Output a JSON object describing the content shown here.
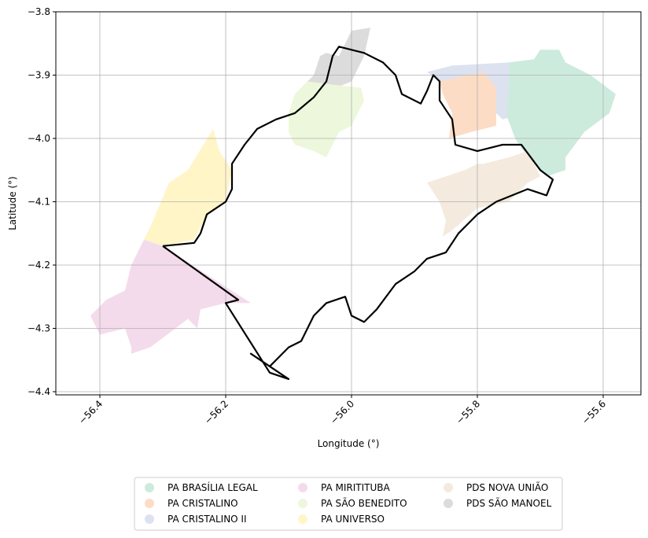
{
  "chart_data": {
    "type": "map",
    "xlabel": "Longitude (°)",
    "ylabel": "Latitude (°)",
    "xlim": [
      -56.47,
      -55.54
    ],
    "ylim": [
      -4.405,
      -3.8
    ],
    "grid": true,
    "legend_placement": "bottom-center",
    "x_ticks": [
      {
        "value": -56.4,
        "label": "−56.4"
      },
      {
        "value": -56.2,
        "label": "−56.2"
      },
      {
        "value": -56.0,
        "label": "−56.0"
      },
      {
        "value": -55.8,
        "label": "−55.8"
      },
      {
        "value": -55.6,
        "label": "−55.6"
      }
    ],
    "y_ticks": [
      {
        "value": -3.8,
        "label": "−3.8"
      },
      {
        "value": -3.9,
        "label": "−3.9"
      },
      {
        "value": -4.0,
        "label": "−4.0"
      },
      {
        "value": -4.1,
        "label": "−4.1"
      },
      {
        "value": -4.2,
        "label": "−4.2"
      },
      {
        "value": -4.3,
        "label": "−4.3"
      },
      {
        "value": -4.4,
        "label": "−4.4"
      }
    ],
    "legend": [
      {
        "label": "PA BRASÍLIA LEGAL",
        "color": "#cdebdd"
      },
      {
        "label": "PA CRISTALINO",
        "color": "#fddcc6"
      },
      {
        "label": "PA CRISTALINO II",
        "color": "#dde2f0"
      },
      {
        "label": "PA MIRITITUBA",
        "color": "#f4dbec"
      },
      {
        "label": "PA SÃO BENEDITO",
        "color": "#edf7dc"
      },
      {
        "label": "PA UNIVERSO",
        "color": "#fff5c7"
      },
      {
        "label": "PDS NOVA UNIÃO",
        "color": "#f4eadd"
      },
      {
        "label": "PDS SÃO MANOEL",
        "color": "#dcdcdc"
      }
    ],
    "regions": [
      {
        "name": "PDS SÃO MANOEL",
        "color": "#dcdcdc",
        "coords": [
          [
            -55.97,
            -3.825
          ],
          [
            -55.98,
            -3.87
          ],
          [
            -56.0,
            -3.91
          ],
          [
            -56.05,
            -3.93
          ],
          [
            -56.08,
            -3.92
          ],
          [
            -56.06,
            -3.9
          ],
          [
            -56.05,
            -3.87
          ],
          [
            -56.04,
            -3.865
          ],
          [
            -56.02,
            -3.87
          ],
          [
            -56.0,
            -3.83
          ]
        ]
      },
      {
        "name": "PA SÃO BENEDITO",
        "color": "#edf7dc",
        "coords": [
          [
            -56.1,
            -3.96
          ],
          [
            -56.09,
            -3.93
          ],
          [
            -56.07,
            -3.91
          ],
          [
            -56.03,
            -3.915
          ],
          [
            -55.985,
            -3.92
          ],
          [
            -55.98,
            -3.94
          ],
          [
            -56.0,
            -3.98
          ],
          [
            -56.02,
            -3.99
          ],
          [
            -56.04,
            -4.03
          ],
          [
            -56.06,
            -4.02
          ],
          [
            -56.09,
            -4.01
          ],
          [
            -56.1,
            -3.99
          ]
        ]
      },
      {
        "name": "PA UNIVERSO",
        "color": "#fff5c7",
        "coords": [
          [
            -56.22,
            -3.985
          ],
          [
            -56.26,
            -4.05
          ],
          [
            -56.29,
            -4.07
          ],
          [
            -56.32,
            -4.14
          ],
          [
            -56.33,
            -4.16
          ],
          [
            -56.3,
            -4.17
          ],
          [
            -56.25,
            -4.16
          ],
          [
            -56.23,
            -4.12
          ],
          [
            -56.2,
            -4.1
          ],
          [
            -56.19,
            -4.05
          ],
          [
            -56.21,
            -4.02
          ]
        ]
      },
      {
        "name": "PA MIRITITUBA",
        "color": "#f4dbec",
        "coords": [
          [
            -56.33,
            -4.16
          ],
          [
            -56.35,
            -4.2
          ],
          [
            -56.36,
            -4.24
          ],
          [
            -56.39,
            -4.255
          ],
          [
            -56.415,
            -4.28
          ],
          [
            -56.4,
            -4.31
          ],
          [
            -56.36,
            -4.3
          ],
          [
            -56.35,
            -4.33
          ],
          [
            -56.35,
            -4.34
          ],
          [
            -56.32,
            -4.33
          ],
          [
            -56.28,
            -4.3
          ],
          [
            -56.26,
            -4.285
          ],
          [
            -56.245,
            -4.3
          ],
          [
            -56.24,
            -4.27
          ],
          [
            -56.2,
            -4.26
          ],
          [
            -56.16,
            -4.26
          ],
          [
            -56.3,
            -4.17
          ]
        ]
      },
      {
        "name": "PA CRISTALINO II",
        "color": "#dde2f0",
        "coords": [
          [
            -55.88,
            -3.895
          ],
          [
            -55.84,
            -3.885
          ],
          [
            -55.75,
            -3.88
          ],
          [
            -55.73,
            -3.89
          ],
          [
            -55.72,
            -3.96
          ],
          [
            -55.76,
            -3.97
          ],
          [
            -55.79,
            -3.94
          ],
          [
            -55.8,
            -3.905
          ],
          [
            -55.86,
            -3.91
          ]
        ]
      },
      {
        "name": "PA CRISTALINO",
        "color": "#fddcc6",
        "coords": [
          [
            -55.86,
            -3.91
          ],
          [
            -55.79,
            -3.895
          ],
          [
            -55.77,
            -3.92
          ],
          [
            -55.77,
            -3.98
          ],
          [
            -55.81,
            -3.99
          ],
          [
            -55.845,
            -4.0
          ],
          [
            -55.84,
            -3.96
          ],
          [
            -55.855,
            -3.93
          ]
        ]
      },
      {
        "name": "PA BRASÍLIA LEGAL",
        "color": "#cdebdd",
        "coords": [
          [
            -55.75,
            -3.88
          ],
          [
            -55.71,
            -3.875
          ],
          [
            -55.7,
            -3.86
          ],
          [
            -55.67,
            -3.86
          ],
          [
            -55.66,
            -3.88
          ],
          [
            -55.62,
            -3.9
          ],
          [
            -55.58,
            -3.93
          ],
          [
            -55.59,
            -3.96
          ],
          [
            -55.63,
            -3.99
          ],
          [
            -55.66,
            -4.03
          ],
          [
            -55.66,
            -4.05
          ],
          [
            -55.69,
            -4.06
          ],
          [
            -55.72,
            -4.03
          ],
          [
            -55.74,
            -4.0
          ],
          [
            -55.755,
            -3.96
          ],
          [
            -55.75,
            -3.92
          ]
        ]
      },
      {
        "name": "PDS NOVA UNIÃO",
        "color": "#f4eadd",
        "coords": [
          [
            -55.88,
            -4.07
          ],
          [
            -55.86,
            -4.1
          ],
          [
            -55.85,
            -4.13
          ],
          [
            -55.855,
            -4.155
          ],
          [
            -55.84,
            -4.145
          ],
          [
            -55.8,
            -4.11
          ],
          [
            -55.75,
            -4.1
          ],
          [
            -55.72,
            -4.07
          ],
          [
            -55.7,
            -4.06
          ],
          [
            -55.72,
            -4.02
          ],
          [
            -55.75,
            -4.03
          ],
          [
            -55.79,
            -4.04
          ],
          [
            -55.8,
            -4.04
          ],
          [
            -55.82,
            -4.05
          ]
        ]
      }
    ],
    "outline": [
      [
        -56.3,
        -4.17
      ],
      [
        -56.25,
        -4.165
      ],
      [
        -56.24,
        -4.15
      ],
      [
        -56.23,
        -4.12
      ],
      [
        -56.2,
        -4.1
      ],
      [
        -56.19,
        -4.08
      ],
      [
        -56.19,
        -4.04
      ],
      [
        -56.17,
        -4.01
      ],
      [
        -56.15,
        -3.985
      ],
      [
        -56.12,
        -3.97
      ],
      [
        -56.09,
        -3.96
      ],
      [
        -56.06,
        -3.935
      ],
      [
        -56.04,
        -3.91
      ],
      [
        -56.03,
        -3.87
      ],
      [
        -56.02,
        -3.855
      ],
      [
        -56.0,
        -3.86
      ],
      [
        -55.98,
        -3.865
      ],
      [
        -55.95,
        -3.88
      ],
      [
        -55.93,
        -3.9
      ],
      [
        -55.92,
        -3.93
      ],
      [
        -55.89,
        -3.945
      ],
      [
        -55.88,
        -3.925
      ],
      [
        -55.87,
        -3.9
      ],
      [
        -55.86,
        -3.91
      ],
      [
        -55.86,
        -3.94
      ],
      [
        -55.84,
        -3.97
      ],
      [
        -55.835,
        -4.01
      ],
      [
        -55.8,
        -4.02
      ],
      [
        -55.76,
        -4.01
      ],
      [
        -55.73,
        -4.01
      ],
      [
        -55.7,
        -4.05
      ],
      [
        -55.68,
        -4.065
      ],
      [
        -55.69,
        -4.09
      ],
      [
        -55.72,
        -4.08
      ],
      [
        -55.77,
        -4.1
      ],
      [
        -55.8,
        -4.12
      ],
      [
        -55.83,
        -4.15
      ],
      [
        -55.85,
        -4.18
      ],
      [
        -55.88,
        -4.19
      ],
      [
        -55.9,
        -4.21
      ],
      [
        -55.93,
        -4.23
      ],
      [
        -55.96,
        -4.27
      ],
      [
        -55.98,
        -4.29
      ],
      [
        -56.0,
        -4.28
      ],
      [
        -56.01,
        -4.25
      ],
      [
        -56.04,
        -4.26
      ],
      [
        -56.06,
        -4.28
      ],
      [
        -56.08,
        -4.32
      ],
      [
        -56.1,
        -4.33
      ],
      [
        -56.13,
        -4.36
      ],
      [
        -56.16,
        -4.34
      ],
      [
        -56.1,
        -4.38
      ],
      [
        -56.13,
        -4.37
      ],
      [
        -56.2,
        -4.26
      ],
      [
        -56.18,
        -4.255
      ],
      [
        -56.3,
        -4.17
      ]
    ]
  }
}
